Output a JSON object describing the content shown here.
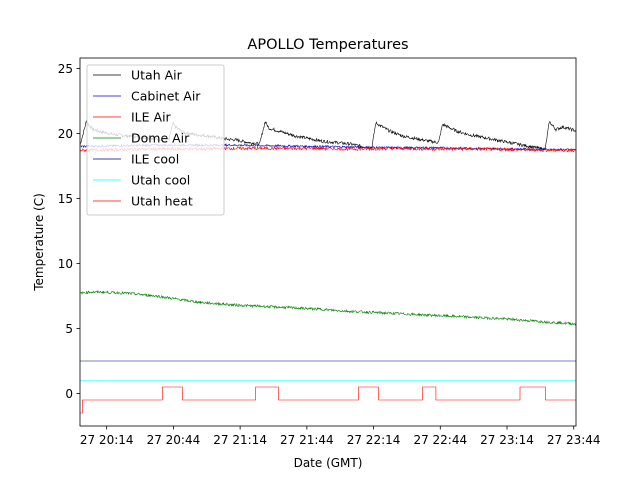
{
  "chart_data": {
    "type": "line",
    "title": "APOLLO Temperatures",
    "xlabel": "Date (GMT)",
    "ylabel": "Temperature (C)",
    "xlim": [
      20.033,
      23.75
    ],
    "ylim": [
      -2.5,
      25.8
    ],
    "yticks": [
      0,
      5,
      10,
      15,
      20,
      25
    ],
    "yticklabels": [
      "0",
      "5",
      "10",
      "15",
      "20",
      "25"
    ],
    "xticks": [
      20.233,
      20.733,
      21.233,
      21.733,
      22.233,
      22.733,
      23.233,
      23.733
    ],
    "xticklabels": [
      "27 20:14",
      "27 20:44",
      "27 21:14",
      "27 21:44",
      "27 22:14",
      "27 22:44",
      "27 23:14",
      "27 23:44"
    ],
    "legend_position": "upper-left",
    "series": [
      {
        "name": "Utah Air",
        "color": "#000000",
        "x": [
          20.033,
          20.08,
          20.13,
          20.2,
          20.3,
          20.4,
          20.5,
          20.6,
          20.7,
          20.73,
          20.75,
          20.8,
          20.9,
          21.0,
          21.1,
          21.2,
          21.3,
          21.38,
          21.42,
          21.45,
          21.55,
          21.65,
          21.75,
          21.85,
          21.95,
          22.05,
          22.15,
          22.22,
          22.25,
          22.35,
          22.45,
          22.55,
          22.65,
          22.72,
          22.75,
          22.85,
          22.95,
          23.05,
          23.15,
          23.25,
          23.35,
          23.45,
          23.52,
          23.55,
          23.6,
          23.65,
          23.75
        ],
        "y": [
          19.1,
          20.9,
          20.3,
          20.1,
          19.9,
          19.8,
          19.7,
          19.6,
          19.5,
          20.8,
          20.5,
          20.1,
          19.9,
          19.8,
          19.6,
          19.5,
          19.3,
          19.2,
          20.9,
          20.4,
          20.1,
          19.8,
          19.6,
          19.4,
          19.3,
          19.2,
          19.0,
          18.9,
          20.8,
          20.2,
          19.8,
          19.6,
          19.4,
          19.3,
          20.7,
          20.2,
          19.9,
          19.7,
          19.5,
          19.3,
          19.1,
          18.9,
          18.8,
          20.9,
          20.3,
          20.5,
          20.2
        ]
      },
      {
        "name": "Cabinet Air",
        "color": "#0000cc",
        "x": [
          20.033,
          20.3,
          20.6,
          20.9,
          21.2,
          21.5,
          21.8,
          22.1,
          22.4,
          22.7,
          23.0,
          23.3,
          23.6,
          23.75
        ],
        "y": [
          19.0,
          19.05,
          19.1,
          19.1,
          19.1,
          19.05,
          19.0,
          18.95,
          18.9,
          18.9,
          18.85,
          18.8,
          18.75,
          18.75
        ]
      },
      {
        "name": "ILE Air",
        "color": "#ff0000",
        "x": [
          20.033,
          20.3,
          20.6,
          20.9,
          21.2,
          21.5,
          21.8,
          22.1,
          22.4,
          22.7,
          23.0,
          23.3,
          23.6,
          23.75
        ],
        "y": [
          18.7,
          18.75,
          18.8,
          18.8,
          18.85,
          18.85,
          18.85,
          18.8,
          18.85,
          18.8,
          18.8,
          18.75,
          18.7,
          18.7
        ]
      },
      {
        "name": "Dome Air",
        "color": "#008000",
        "x": [
          20.033,
          20.1,
          20.2,
          20.3,
          20.4,
          20.5,
          20.6,
          20.7,
          20.8,
          20.9,
          21.0,
          21.2,
          21.4,
          21.6,
          21.8,
          22.0,
          22.2,
          22.4,
          22.6,
          22.8,
          23.0,
          23.2,
          23.4,
          23.6,
          23.75
        ],
        "y": [
          7.7,
          7.8,
          7.8,
          7.75,
          7.7,
          7.6,
          7.5,
          7.35,
          7.2,
          7.05,
          6.95,
          6.8,
          6.7,
          6.6,
          6.5,
          6.35,
          6.25,
          6.15,
          6.05,
          5.95,
          5.85,
          5.75,
          5.6,
          5.45,
          5.35
        ]
      },
      {
        "name": "ILE cool",
        "color": "#000080",
        "x": [
          20.033,
          23.75
        ],
        "y": [
          2.5,
          2.5
        ]
      },
      {
        "name": "Utah cool",
        "color": "#00ffff",
        "x": [
          20.033,
          23.75
        ],
        "y": [
          1.0,
          1.0
        ]
      },
      {
        "name": "Utah heat",
        "color": "#ff0000",
        "x": [
          20.033,
          20.05,
          20.05,
          20.65,
          20.65,
          20.8,
          20.8,
          21.35,
          21.35,
          21.52,
          21.52,
          22.12,
          22.12,
          22.27,
          22.27,
          22.6,
          22.6,
          22.7,
          22.7,
          23.33,
          23.33,
          23.52,
          23.52,
          23.75
        ],
        "y": [
          -1.5,
          -1.5,
          -0.5,
          -0.5,
          0.5,
          0.5,
          -0.5,
          -0.5,
          0.5,
          0.5,
          -0.5,
          -0.5,
          0.5,
          0.5,
          -0.5,
          -0.5,
          0.5,
          0.5,
          -0.5,
          -0.5,
          0.5,
          0.5,
          -0.5,
          -0.5
        ]
      }
    ]
  }
}
